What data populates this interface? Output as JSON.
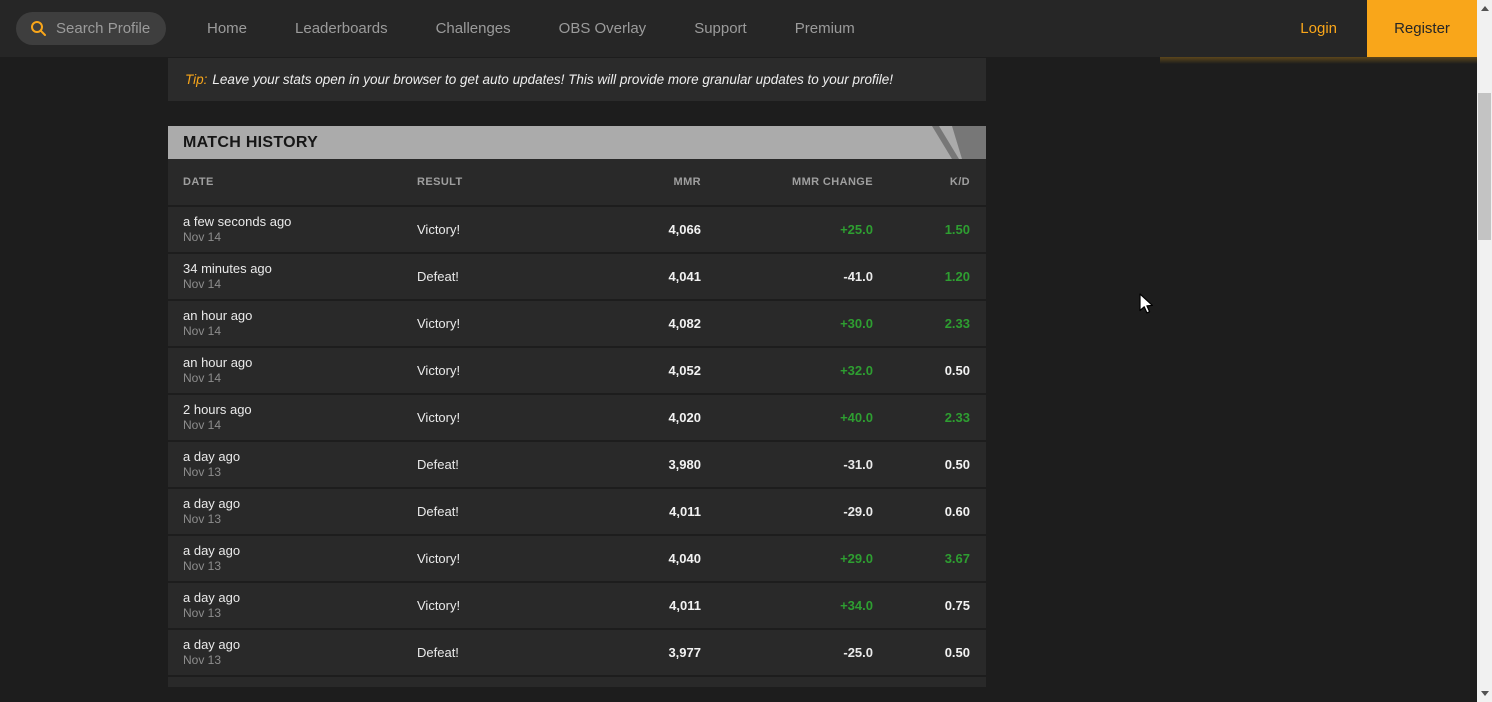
{
  "nav": {
    "search": {
      "placeholder": "Search Profile",
      "icon": "search-icon"
    },
    "items": [
      {
        "label": "Home"
      },
      {
        "label": "Leaderboards"
      },
      {
        "label": "Challenges"
      },
      {
        "label": "OBS Overlay"
      },
      {
        "label": "Support"
      },
      {
        "label": "Premium"
      }
    ],
    "login_label": "Login",
    "register_label": "Register"
  },
  "tip": {
    "prefix": "Tip:",
    "text": "Leave your stats open in your browser to get auto updates! This will provide more granular updates to your profile!"
  },
  "match_history": {
    "title": "MATCH HISTORY",
    "columns": [
      "DATE",
      "RESULT",
      "MMR",
      "MMR CHANGE",
      "K/D"
    ],
    "rows": [
      {
        "time_ago": "a few seconds ago",
        "date": "Nov 14",
        "result": "Victory!",
        "mmr": "4,066",
        "mmr_change": "+25.0",
        "change_positive": true,
        "kd": "1.50",
        "kd_green": true
      },
      {
        "time_ago": "34 minutes ago",
        "date": "Nov 14",
        "result": "Defeat!",
        "mmr": "4,041",
        "mmr_change": "-41.0",
        "change_positive": false,
        "kd": "1.20",
        "kd_green": true
      },
      {
        "time_ago": "an hour ago",
        "date": "Nov 14",
        "result": "Victory!",
        "mmr": "4,082",
        "mmr_change": "+30.0",
        "change_positive": true,
        "kd": "2.33",
        "kd_green": true
      },
      {
        "time_ago": "an hour ago",
        "date": "Nov 14",
        "result": "Victory!",
        "mmr": "4,052",
        "mmr_change": "+32.0",
        "change_positive": true,
        "kd": "0.50",
        "kd_green": false
      },
      {
        "time_ago": "2 hours ago",
        "date": "Nov 14",
        "result": "Victory!",
        "mmr": "4,020",
        "mmr_change": "+40.0",
        "change_positive": true,
        "kd": "2.33",
        "kd_green": true
      },
      {
        "time_ago": "a day ago",
        "date": "Nov 13",
        "result": "Defeat!",
        "mmr": "3,980",
        "mmr_change": "-31.0",
        "change_positive": false,
        "kd": "0.50",
        "kd_green": false
      },
      {
        "time_ago": "a day ago",
        "date": "Nov 13",
        "result": "Defeat!",
        "mmr": "4,011",
        "mmr_change": "-29.0",
        "change_positive": false,
        "kd": "0.60",
        "kd_green": false
      },
      {
        "time_ago": "a day ago",
        "date": "Nov 13",
        "result": "Victory!",
        "mmr": "4,040",
        "mmr_change": "+29.0",
        "change_positive": true,
        "kd": "3.67",
        "kd_green": true
      },
      {
        "time_ago": "a day ago",
        "date": "Nov 13",
        "result": "Victory!",
        "mmr": "4,011",
        "mmr_change": "+34.0",
        "change_positive": true,
        "kd": "0.75",
        "kd_green": false
      },
      {
        "time_ago": "a day ago",
        "date": "Nov 13",
        "result": "Defeat!",
        "mmr": "3,977",
        "mmr_change": "-25.0",
        "change_positive": false,
        "kd": "0.50",
        "kd_green": false
      }
    ]
  },
  "colors": {
    "accent_orange": "#f9a61a",
    "positive_green": "#2e9e31",
    "titlebar_gray": "#ababab",
    "titlebar_slash_gray": "#777777",
    "page_background": "#1d1d1d",
    "nav_background": "#262626"
  }
}
